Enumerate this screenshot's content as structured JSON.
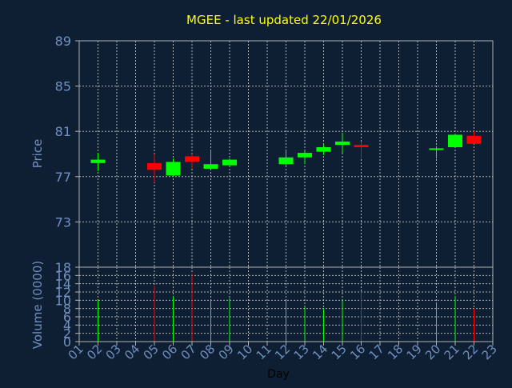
{
  "chart_data": {
    "type": "candlestick",
    "title": "MGEE - last updated 22/01/2026",
    "xlabel": "Day",
    "price_ylabel": "Price",
    "volume_ylabel": "Volume (0000)",
    "price_ticks": [
      "89",
      "85",
      "81",
      "77",
      "73"
    ],
    "price_ylim": [
      69,
      89
    ],
    "volume_ticks": [
      "18",
      "16",
      "14",
      "12",
      "10",
      "8",
      "6",
      "4",
      "2",
      "0"
    ],
    "volume_ylim": [
      0,
      18
    ],
    "x_ticks": [
      "01",
      "02",
      "03",
      "04",
      "05",
      "06",
      "07",
      "08",
      "09",
      "10",
      "11",
      "12",
      "13",
      "14",
      "15",
      "16",
      "17",
      "18",
      "19",
      "20",
      "21",
      "22",
      "23"
    ],
    "grid": true,
    "colors": {
      "background": "#0f1f33",
      "up": "#00ff00",
      "down": "#ff0000",
      "grid": "#b0b0b0",
      "frame": "#b0b0b0",
      "axis_text": "#7090c0",
      "title": "#ffff00",
      "xlabel": "#000000"
    },
    "candles": [
      {
        "day": 2,
        "open": 78.2,
        "high": 79.1,
        "low": 77.5,
        "close": 78.5,
        "volume": 10
      },
      {
        "day": 5,
        "open": 78.2,
        "high": 79.0,
        "low": 76.5,
        "close": 77.6,
        "volume": 13.5
      },
      {
        "day": 6,
        "open": 77.1,
        "high": 78.6,
        "low": 77.0,
        "close": 78.3,
        "volume": 11
      },
      {
        "day": 7,
        "open": 78.8,
        "high": 79.0,
        "low": 77.7,
        "close": 78.3,
        "volume": 16.5
      },
      {
        "day": 8,
        "open": 77.7,
        "high": 79.4,
        "low": 77.7,
        "close": 78.1,
        "volume": 10
      },
      {
        "day": 9,
        "open": 78.0,
        "high": 78.6,
        "low": 78.0,
        "close": 78.5,
        "volume": 10.5
      },
      {
        "day": 12,
        "open": 78.1,
        "high": 79.4,
        "low": 78.0,
        "close": 78.7,
        "volume": 10
      },
      {
        "day": 13,
        "open": 78.7,
        "high": 79.3,
        "low": 78.1,
        "close": 79.1,
        "volume": 8.5
      },
      {
        "day": 14,
        "open": 79.2,
        "high": 79.8,
        "low": 78.9,
        "close": 79.6,
        "volume": 8
      },
      {
        "day": 15,
        "open": 79.8,
        "high": 80.9,
        "low": 79.1,
        "close": 80.1,
        "volume": 10
      },
      {
        "day": 16,
        "open": 79.8,
        "high": 80.1,
        "low": 78.6,
        "close": 79.6,
        "volume": 12
      },
      {
        "day": 20,
        "open": 79.4,
        "high": 79.7,
        "low": 78.6,
        "close": 79.5,
        "volume": 9.5
      },
      {
        "day": 21,
        "open": 79.6,
        "high": 80.8,
        "low": 79.6,
        "close": 80.7,
        "volume": 11
      },
      {
        "day": 22,
        "open": 80.6,
        "high": 81.0,
        "low": 79.9,
        "close": 79.9,
        "volume": 8
      }
    ]
  }
}
